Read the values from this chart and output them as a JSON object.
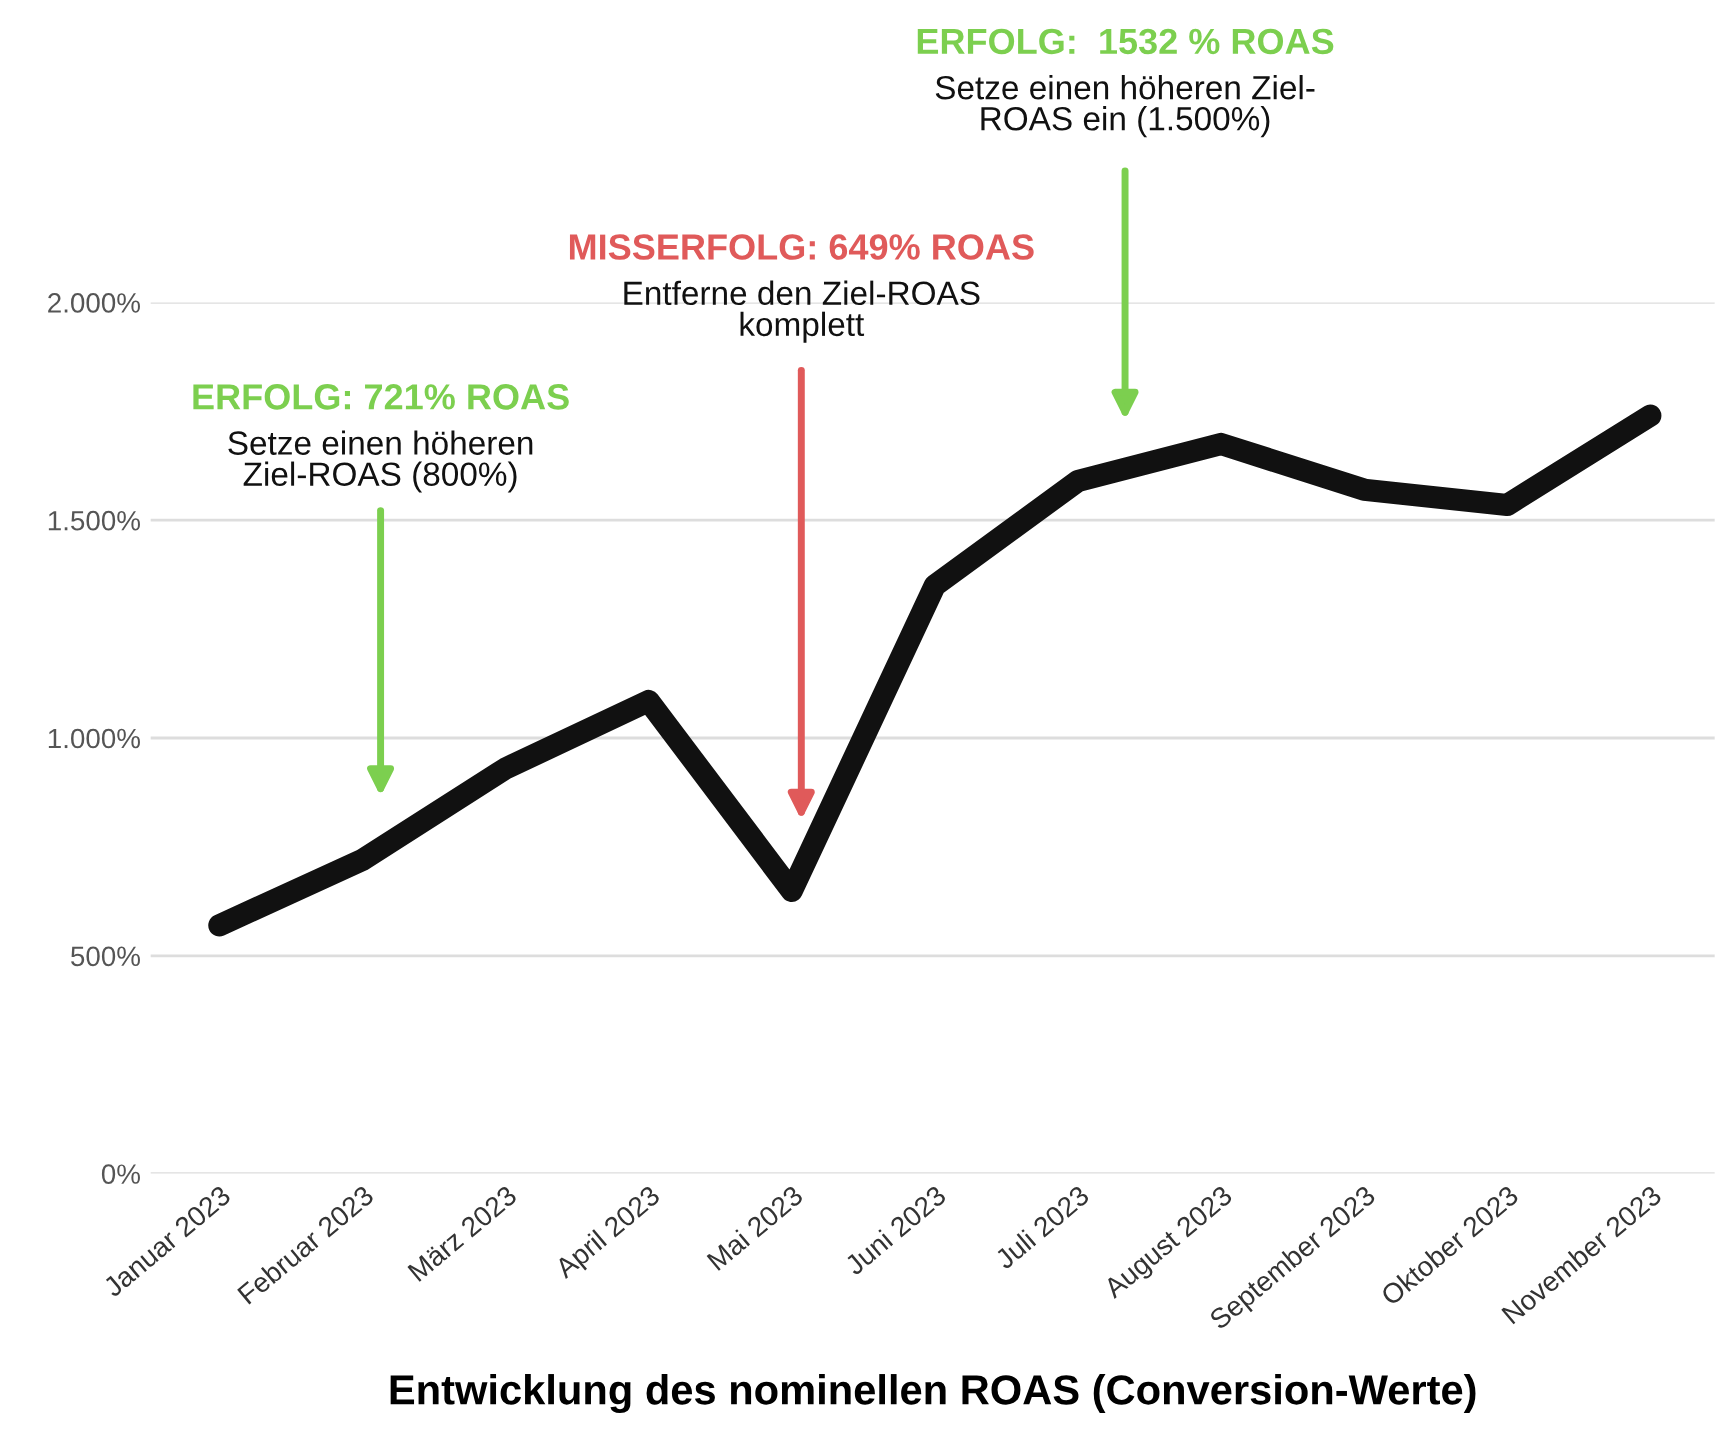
{
  "chart_data": {
    "type": "line",
    "xlabel": "Entwicklung des nominellen ROAS (Conversion-Werte)",
    "categories": [
      "Januar 2023",
      "Februar 2023",
      "März 2023",
      "April 2023",
      "Mai 2023",
      "Juni 2023",
      "Juli 2023",
      "August 2023",
      "September 2023",
      "Oktober 2023",
      "November 2023"
    ],
    "series": [
      {
        "color": "#111111",
        "values": [
          570,
          720,
          930,
          1085,
          649,
          1350,
          1590,
          1675,
          1570,
          1535,
          1740
        ]
      }
    ],
    "ylim": [
      0,
      2000
    ],
    "yticks": [
      {
        "value": 0,
        "label": "0%"
      },
      {
        "value": 500,
        "label": "500%"
      },
      {
        "value": 1000,
        "label": "1.000%"
      },
      {
        "value": 1500,
        "label": "1.500%"
      },
      {
        "value": 2000,
        "label": "2.000%"
      }
    ],
    "grid": "y",
    "legend": false,
    "line_style": "solid",
    "annotations": [
      "ERFOLG: 721% ROAS\nSetze einen höheren\nZiel-ROAS (800%)",
      "MISSERFOLG: 649% ROAS\nEntferne den Ziel-ROAS\nkomplett",
      "ERFOLG:  1532 % ROAS\nSetze einen höheren Ziel-\nROAS ein (1.500%)"
    ]
  }
}
